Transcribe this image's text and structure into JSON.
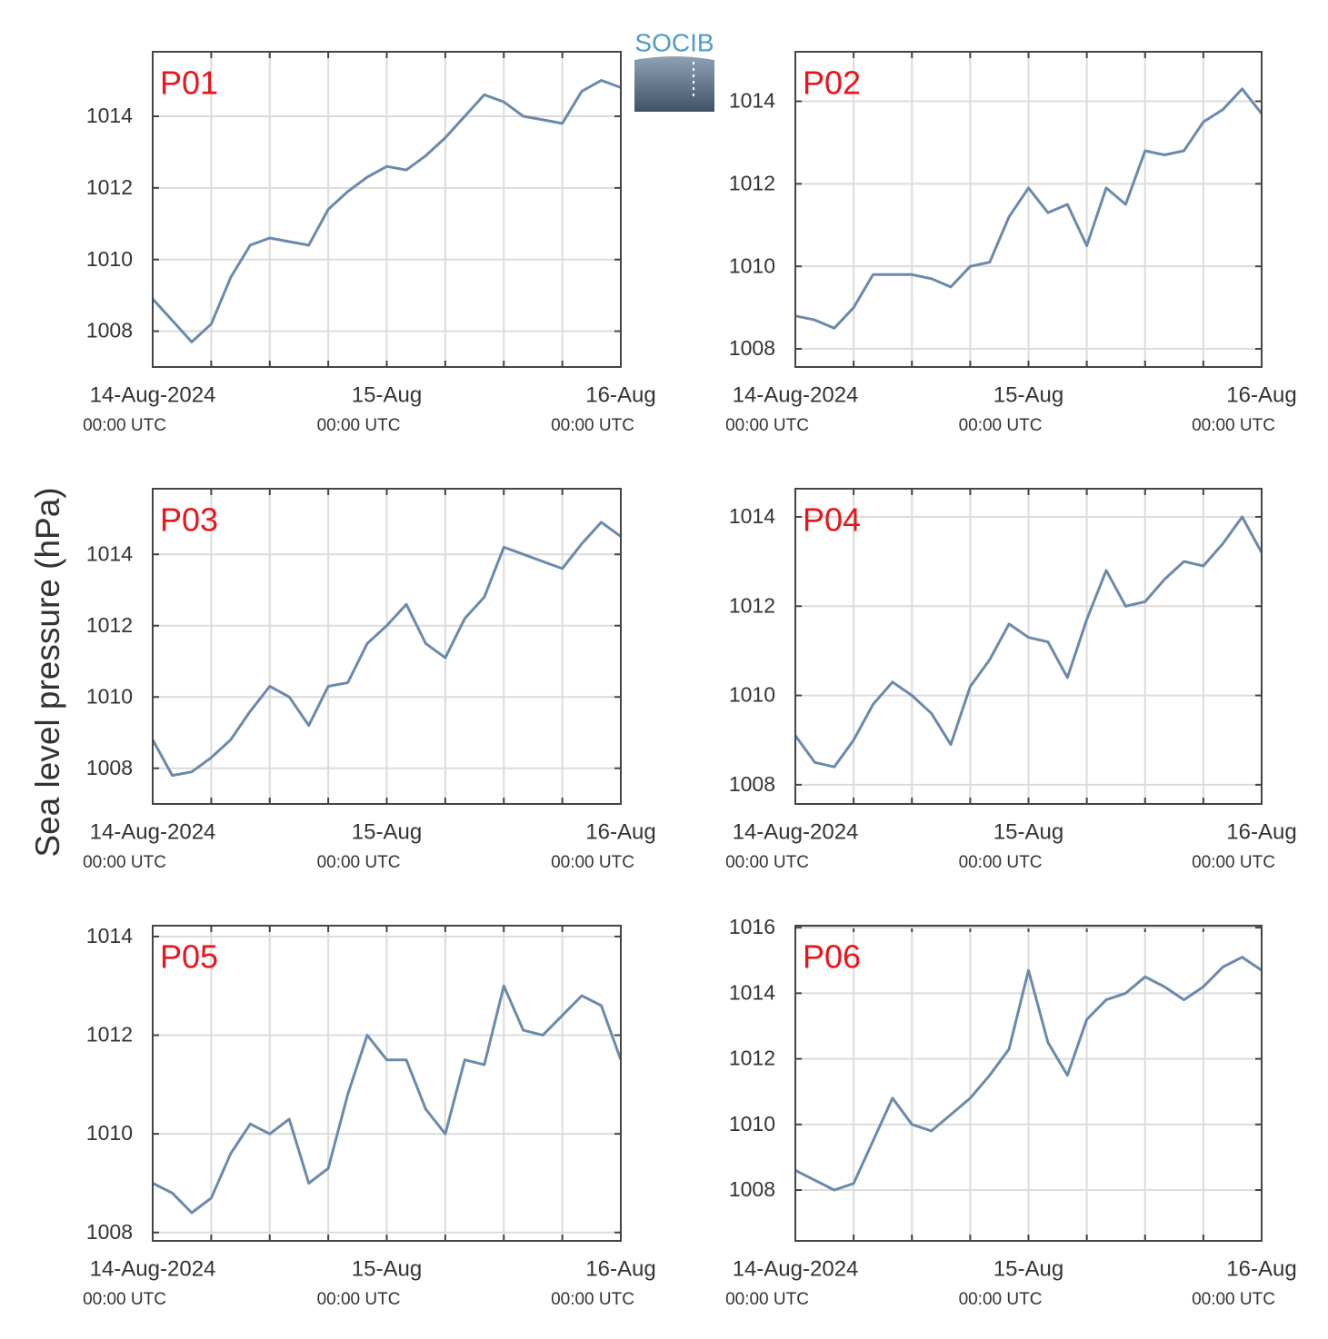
{
  "ylabel": "Sea level pressure (hPa)",
  "logo": "SOCIB",
  "chart_data": [
    {
      "type": "line",
      "title": "P01",
      "color": "#6b8aab",
      "grid": true,
      "x": [
        "2024-08-14T00:00",
        "2024-08-14T02:00",
        "2024-08-14T04:00",
        "2024-08-14T06:00",
        "2024-08-14T08:00",
        "2024-08-14T10:00",
        "2024-08-14T12:00",
        "2024-08-14T14:00",
        "2024-08-14T16:00",
        "2024-08-14T18:00",
        "2024-08-14T20:00",
        "2024-08-14T22:00",
        "2024-08-15T00:00",
        "2024-08-15T02:00",
        "2024-08-15T04:00",
        "2024-08-15T06:00",
        "2024-08-15T08:00",
        "2024-08-15T10:00",
        "2024-08-15T12:00",
        "2024-08-15T14:00",
        "2024-08-15T16:00",
        "2024-08-15T18:00",
        "2024-08-15T20:00",
        "2024-08-15T22:00",
        "2024-08-16T00:00"
      ],
      "values": [
        1008.9,
        1008.3,
        1007.7,
        1008.2,
        1009.5,
        1010.4,
        1010.6,
        1010.5,
        1010.4,
        1011.4,
        1011.9,
        1012.3,
        1012.6,
        1012.5,
        1012.9,
        1013.4,
        1014.0,
        1014.6,
        1014.4,
        1014.0,
        1013.9,
        1013.8,
        1014.7,
        1015.0,
        1014.8
      ],
      "xlim": [
        "2024-08-14T00:00",
        "2024-08-16T00:00"
      ],
      "xgrid": [
        "2024-08-14T00:00",
        "2024-08-14T06:00",
        "2024-08-14T12:00",
        "2024-08-14T18:00",
        "2024-08-15T00:00",
        "2024-08-15T06:00",
        "2024-08-15T12:00",
        "2024-08-15T18:00",
        "2024-08-16T00:00"
      ],
      "xticks": [
        {
          "value": "2024-08-14T00:00",
          "label": "14-Aug-2024",
          "time": "00:00 UTC"
        },
        {
          "value": "2024-08-15T00:00",
          "label": "15-Aug",
          "time": "00:00 UTC"
        },
        {
          "value": "2024-08-16T00:00",
          "label": "16-Aug",
          "time": "00:00 UTC"
        }
      ],
      "ylim": [
        1007,
        1015.8
      ],
      "yticks": [
        1008,
        1010,
        1012,
        1014
      ]
    },
    {
      "type": "line",
      "title": "P02",
      "color": "#6b8aab",
      "grid": true,
      "x": [
        "2024-08-14T00:00",
        "2024-08-14T02:00",
        "2024-08-14T04:00",
        "2024-08-14T06:00",
        "2024-08-14T08:00",
        "2024-08-14T10:00",
        "2024-08-14T12:00",
        "2024-08-14T14:00",
        "2024-08-14T16:00",
        "2024-08-14T18:00",
        "2024-08-14T20:00",
        "2024-08-14T22:00",
        "2024-08-15T00:00",
        "2024-08-15T02:00",
        "2024-08-15T04:00",
        "2024-08-15T06:00",
        "2024-08-15T08:00",
        "2024-08-15T10:00",
        "2024-08-15T12:00",
        "2024-08-15T14:00",
        "2024-08-15T16:00",
        "2024-08-15T18:00",
        "2024-08-15T20:00",
        "2024-08-15T22:00",
        "2024-08-16T00:00"
      ],
      "values": [
        1008.8,
        1008.7,
        1008.5,
        1009.0,
        1009.8,
        1009.8,
        1009.8,
        1009.7,
        1009.5,
        1010.0,
        1010.1,
        1011.2,
        1011.9,
        1011.3,
        1011.5,
        1010.5,
        1011.9,
        1011.5,
        1012.8,
        1012.7,
        1012.8,
        1013.5,
        1013.8,
        1014.3,
        1013.7
      ],
      "xlim": [
        "2024-08-14T00:00",
        "2024-08-16T00:00"
      ],
      "xgrid": [
        "2024-08-14T00:00",
        "2024-08-14T06:00",
        "2024-08-14T12:00",
        "2024-08-14T18:00",
        "2024-08-15T00:00",
        "2024-08-15T06:00",
        "2024-08-15T12:00",
        "2024-08-15T18:00",
        "2024-08-16T00:00"
      ],
      "xticks": [
        {
          "value": "2024-08-14T00:00",
          "label": "14-Aug-2024",
          "time": "00:00 UTC"
        },
        {
          "value": "2024-08-15T00:00",
          "label": "15-Aug",
          "time": "00:00 UTC"
        },
        {
          "value": "2024-08-16T00:00",
          "label": "16-Aug",
          "time": "00:00 UTC"
        }
      ],
      "ylim": [
        1007.56,
        1015.2
      ],
      "yticks": [
        1008,
        1010,
        1012,
        1014
      ]
    },
    {
      "type": "line",
      "title": "P03",
      "color": "#6b8aab",
      "grid": true,
      "x": [
        "2024-08-14T00:00",
        "2024-08-14T02:00",
        "2024-08-14T04:00",
        "2024-08-14T06:00",
        "2024-08-14T08:00",
        "2024-08-14T10:00",
        "2024-08-14T12:00",
        "2024-08-14T14:00",
        "2024-08-14T16:00",
        "2024-08-14T18:00",
        "2024-08-14T20:00",
        "2024-08-14T22:00",
        "2024-08-15T00:00",
        "2024-08-15T02:00",
        "2024-08-15T04:00",
        "2024-08-15T06:00",
        "2024-08-15T08:00",
        "2024-08-15T10:00",
        "2024-08-15T12:00",
        "2024-08-15T14:00",
        "2024-08-15T16:00",
        "2024-08-15T18:00",
        "2024-08-15T20:00",
        "2024-08-15T22:00",
        "2024-08-16T00:00"
      ],
      "values": [
        1008.8,
        1007.8,
        1007.9,
        1008.3,
        1008.8,
        1009.6,
        1010.3,
        1010.0,
        1009.2,
        1010.3,
        1010.4,
        1011.5,
        1012.0,
        1012.6,
        1011.5,
        1011.1,
        1012.2,
        1012.8,
        1014.2,
        1014.0,
        1013.8,
        1013.6,
        1014.3,
        1014.9,
        1014.5
      ],
      "xlim": [
        "2024-08-14T00:00",
        "2024-08-16T00:00"
      ],
      "xgrid": [
        "2024-08-14T00:00",
        "2024-08-14T06:00",
        "2024-08-14T12:00",
        "2024-08-14T18:00",
        "2024-08-15T00:00",
        "2024-08-15T06:00",
        "2024-08-15T12:00",
        "2024-08-15T18:00",
        "2024-08-16T00:00"
      ],
      "xticks": [
        {
          "value": "2024-08-14T00:00",
          "label": "14-Aug-2024",
          "time": "00:00 UTC"
        },
        {
          "value": "2024-08-15T00:00",
          "label": "15-Aug",
          "time": "00:00 UTC"
        },
        {
          "value": "2024-08-16T00:00",
          "label": "16-Aug",
          "time": "00:00 UTC"
        }
      ],
      "ylim": [
        1007,
        1015.84
      ],
      "yticks": [
        1008,
        1010,
        1012,
        1014
      ]
    },
    {
      "type": "line",
      "title": "P04",
      "color": "#6b8aab",
      "grid": true,
      "x": [
        "2024-08-14T00:00",
        "2024-08-14T02:00",
        "2024-08-14T04:00",
        "2024-08-14T06:00",
        "2024-08-14T08:00",
        "2024-08-14T10:00",
        "2024-08-14T12:00",
        "2024-08-14T14:00",
        "2024-08-14T16:00",
        "2024-08-14T18:00",
        "2024-08-14T20:00",
        "2024-08-14T22:00",
        "2024-08-15T00:00",
        "2024-08-15T02:00",
        "2024-08-15T04:00",
        "2024-08-15T06:00",
        "2024-08-15T08:00",
        "2024-08-15T10:00",
        "2024-08-15T12:00",
        "2024-08-15T14:00",
        "2024-08-15T16:00",
        "2024-08-15T18:00",
        "2024-08-15T20:00",
        "2024-08-15T22:00",
        "2024-08-16T00:00"
      ],
      "values": [
        1009.1,
        1008.5,
        1008.4,
        1009.0,
        1009.8,
        1010.3,
        1010.0,
        1009.6,
        1008.9,
        1010.2,
        1010.8,
        1011.6,
        1011.3,
        1011.2,
        1010.4,
        1011.7,
        1012.8,
        1012.0,
        1012.1,
        1012.6,
        1013.0,
        1012.9,
        1013.4,
        1014.0,
        1013.2
      ],
      "xlim": [
        "2024-08-14T00:00",
        "2024-08-16T00:00"
      ],
      "xgrid": [
        "2024-08-14T00:00",
        "2024-08-14T06:00",
        "2024-08-14T12:00",
        "2024-08-14T18:00",
        "2024-08-15T00:00",
        "2024-08-15T06:00",
        "2024-08-15T12:00",
        "2024-08-15T18:00",
        "2024-08-16T00:00"
      ],
      "xticks": [
        {
          "value": "2024-08-14T00:00",
          "label": "14-Aug-2024",
          "time": "00:00 UTC"
        },
        {
          "value": "2024-08-15T00:00",
          "label": "15-Aug",
          "time": "00:00 UTC"
        },
        {
          "value": "2024-08-16T00:00",
          "label": "16-Aug",
          "time": "00:00 UTC"
        }
      ],
      "ylim": [
        1007.57,
        1014.63
      ],
      "yticks": [
        1008,
        1010,
        1012,
        1014
      ]
    },
    {
      "type": "line",
      "title": "P05",
      "color": "#6b8aab",
      "grid": true,
      "x": [
        "2024-08-14T00:00",
        "2024-08-14T02:00",
        "2024-08-14T04:00",
        "2024-08-14T06:00",
        "2024-08-14T08:00",
        "2024-08-14T10:00",
        "2024-08-14T12:00",
        "2024-08-14T14:00",
        "2024-08-14T16:00",
        "2024-08-14T18:00",
        "2024-08-14T20:00",
        "2024-08-14T22:00",
        "2024-08-15T00:00",
        "2024-08-15T02:00",
        "2024-08-15T04:00",
        "2024-08-15T06:00",
        "2024-08-15T08:00",
        "2024-08-15T10:00",
        "2024-08-15T12:00",
        "2024-08-15T14:00",
        "2024-08-15T16:00",
        "2024-08-15T18:00",
        "2024-08-15T20:00",
        "2024-08-15T22:00",
        "2024-08-16T00:00"
      ],
      "values": [
        1009.0,
        1008.8,
        1008.4,
        1008.7,
        1009.6,
        1010.2,
        1010.0,
        1010.3,
        1009.0,
        1009.3,
        1010.8,
        1012.0,
        1011.5,
        1011.5,
        1010.5,
        1010.0,
        1011.5,
        1011.4,
        1013.0,
        1012.1,
        1012.0,
        1012.4,
        1012.8,
        1012.6,
        1011.5
      ],
      "xlim": [
        "2024-08-14T00:00",
        "2024-08-16T00:00"
      ],
      "xgrid": [
        "2024-08-14T00:00",
        "2024-08-14T06:00",
        "2024-08-14T12:00",
        "2024-08-14T18:00",
        "2024-08-15T00:00",
        "2024-08-15T06:00",
        "2024-08-15T12:00",
        "2024-08-15T18:00",
        "2024-08-16T00:00"
      ],
      "xticks": [
        {
          "value": "2024-08-14T00:00",
          "label": "14-Aug-2024",
          "time": "00:00 UTC"
        },
        {
          "value": "2024-08-15T00:00",
          "label": "15-Aug",
          "time": "00:00 UTC"
        },
        {
          "value": "2024-08-16T00:00",
          "label": "16-Aug",
          "time": "00:00 UTC"
        }
      ],
      "ylim": [
        1007.83,
        1014.22
      ],
      "yticks": [
        1008,
        1010,
        1012,
        1014
      ]
    },
    {
      "type": "line",
      "title": "P06",
      "color": "#6b8aab",
      "grid": true,
      "x": [
        "2024-08-14T00:00",
        "2024-08-14T02:00",
        "2024-08-14T04:00",
        "2024-08-14T06:00",
        "2024-08-14T08:00",
        "2024-08-14T10:00",
        "2024-08-14T12:00",
        "2024-08-14T14:00",
        "2024-08-14T16:00",
        "2024-08-14T18:00",
        "2024-08-14T20:00",
        "2024-08-14T22:00",
        "2024-08-15T00:00",
        "2024-08-15T02:00",
        "2024-08-15T04:00",
        "2024-08-15T06:00",
        "2024-08-15T08:00",
        "2024-08-15T10:00",
        "2024-08-15T12:00",
        "2024-08-15T14:00",
        "2024-08-15T16:00",
        "2024-08-15T18:00",
        "2024-08-15T20:00",
        "2024-08-15T22:00",
        "2024-08-16T00:00"
      ],
      "values": [
        1008.6,
        1008.3,
        1008.0,
        1008.2,
        1009.5,
        1010.8,
        1010.0,
        1009.8,
        1010.3,
        1010.8,
        1011.5,
        1012.3,
        1014.7,
        1012.5,
        1011.5,
        1013.2,
        1013.8,
        1014.0,
        1014.5,
        1014.2,
        1013.8,
        1014.2,
        1014.8,
        1015.1,
        1014.7
      ],
      "xlim": [
        "2024-08-14T00:00",
        "2024-08-16T00:00"
      ],
      "xgrid": [
        "2024-08-14T00:00",
        "2024-08-14T06:00",
        "2024-08-14T12:00",
        "2024-08-14T18:00",
        "2024-08-15T00:00",
        "2024-08-15T06:00",
        "2024-08-15T12:00",
        "2024-08-15T18:00",
        "2024-08-16T00:00"
      ],
      "xticks": [
        {
          "value": "2024-08-14T00:00",
          "label": "14-Aug-2024",
          "time": "00:00 UTC"
        },
        {
          "value": "2024-08-15T00:00",
          "label": "15-Aug",
          "time": "00:00 UTC"
        },
        {
          "value": "2024-08-16T00:00",
          "label": "16-Aug",
          "time": "00:00 UTC"
        }
      ],
      "ylim": [
        1006.45,
        1016.06
      ],
      "yticks": [
        1008,
        1010,
        1012,
        1014,
        1016
      ]
    }
  ]
}
